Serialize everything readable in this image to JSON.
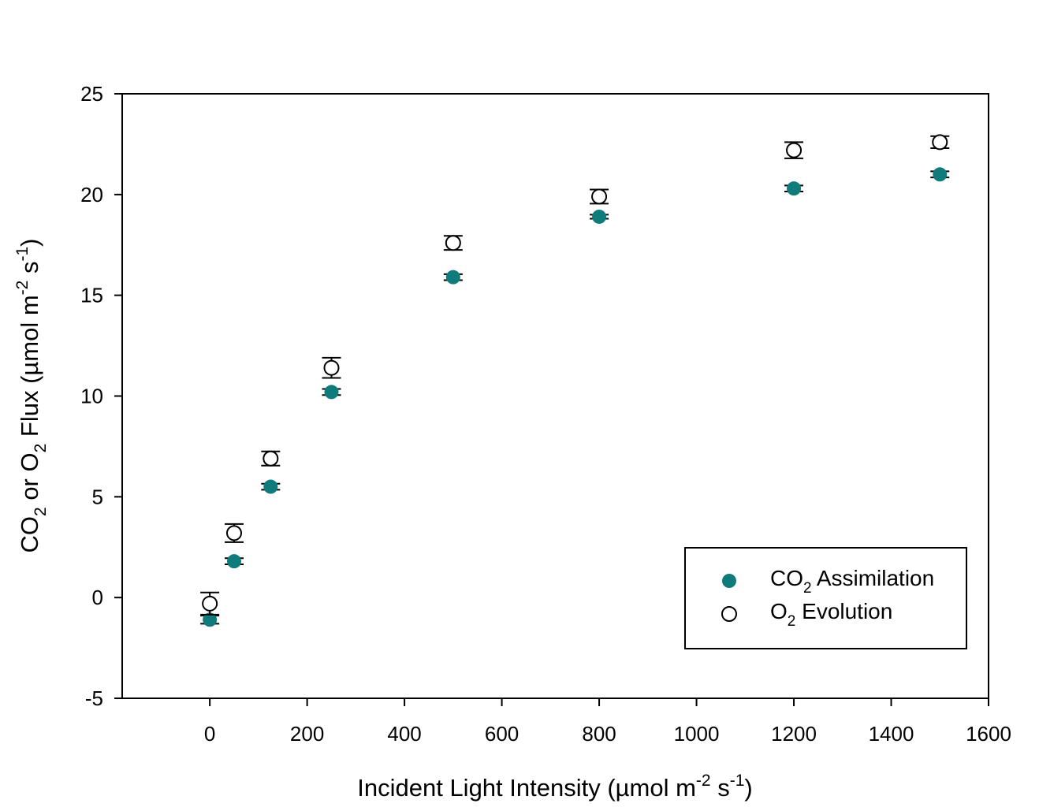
{
  "chart_data": {
    "type": "scatter",
    "xlabel": "Incident Light Intensity (µmol m-2 s-1)",
    "xlabel_parts": {
      "main": "Incident Light Intensity (µmol m",
      "sup1": "-2",
      "mid": " s",
      "sup2": "-1",
      "end": ")"
    },
    "ylabel": "CO2 or O2 Flux (µmol m-2 s-1)",
    "ylabel_parts": {
      "a": "CO",
      "sub1": "2",
      "b": " or O",
      "sub2": "2",
      "c": " Flux (µmol m",
      "sup1": "-2",
      "d": " s",
      "sup2": "-1",
      "e": ")"
    },
    "xlim": [
      -180,
      1600
    ],
    "ylim": [
      -5,
      25
    ],
    "x_ticks": [
      0,
      200,
      400,
      600,
      800,
      1000,
      1200,
      1400,
      1600
    ],
    "y_ticks": [
      -5,
      0,
      5,
      10,
      15,
      20,
      25
    ],
    "x_tick_labels": [
      "0",
      "200",
      "400",
      "600",
      "800",
      "1000",
      "1200",
      "1400",
      "1600"
    ],
    "y_tick_labels": [
      "-5",
      "0",
      "5",
      "10",
      "15",
      "20",
      "25"
    ],
    "grid": false,
    "legend_position": "lower-right",
    "series": [
      {
        "name": "CO2 Assimilation",
        "legend_parts": {
          "a": "CO",
          "sub": "2",
          "b": " Assimilation"
        },
        "marker": "filled-circle",
        "color": "#0f7b7b",
        "x": [
          0,
          50,
          125,
          250,
          500,
          800,
          1200,
          1500
        ],
        "y": [
          -1.1,
          1.8,
          5.5,
          10.2,
          15.9,
          18.9,
          20.3,
          21.0
        ],
        "err": [
          0.2,
          0.15,
          0.15,
          0.15,
          0.15,
          0.1,
          0.15,
          0.15
        ]
      },
      {
        "name": "O2 Evolution",
        "legend_parts": {
          "a": "O",
          "sub": "2",
          "b": " Evolution"
        },
        "marker": "open-circle",
        "color": "#000000",
        "x": [
          0,
          50,
          125,
          250,
          500,
          800,
          1200,
          1500
        ],
        "y": [
          -0.3,
          3.2,
          6.9,
          11.4,
          17.6,
          19.9,
          22.2,
          22.6
        ],
        "err": [
          0.55,
          0.45,
          0.35,
          0.5,
          0.35,
          0.35,
          0.4,
          0.3
        ]
      }
    ]
  }
}
